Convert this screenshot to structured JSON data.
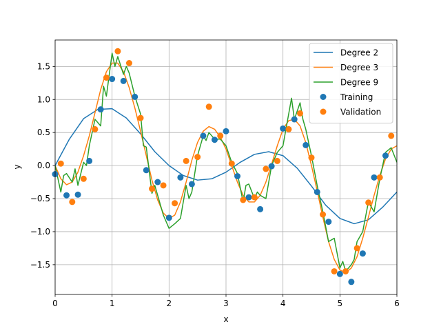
{
  "chart_data": {
    "type": "line",
    "title": "",
    "xlabel": "x",
    "ylabel": "y",
    "xlim": [
      0,
      6
    ],
    "ylim": [
      -1.95,
      1.9
    ],
    "xticks": [
      0,
      1,
      2,
      3,
      4,
      5,
      6
    ],
    "xtick_labels": [
      "0",
      "1",
      "2",
      "3",
      "4",
      "5",
      "6"
    ],
    "yticks": [
      -1.5,
      -1.0,
      -0.5,
      0.0,
      0.5,
      1.0,
      1.5
    ],
    "ytick_labels": [
      "−1.5",
      "−1.0",
      "−0.5",
      "0.0",
      "0.5",
      "1.0",
      "1.5"
    ],
    "grid": true,
    "legend_position": "top-right",
    "series": [
      {
        "name": "Degree 2",
        "kind": "line",
        "color": "#1f77b4",
        "x": [
          0,
          0.25,
          0.5,
          0.75,
          1.0,
          1.25,
          1.5,
          1.75,
          2.0,
          2.25,
          2.5,
          2.75,
          3.0,
          3.25,
          3.5,
          3.75,
          4.0,
          4.25,
          4.5,
          4.75,
          5.0,
          5.25,
          5.5,
          5.75,
          6.0
        ],
        "y": [
          0.0,
          0.4,
          0.71,
          0.85,
          0.86,
          0.72,
          0.48,
          0.21,
          0.0,
          -0.15,
          -0.22,
          -0.2,
          -0.1,
          0.05,
          0.17,
          0.21,
          0.15,
          -0.04,
          -0.31,
          -0.6,
          -0.8,
          -0.88,
          -0.82,
          -0.63,
          -0.4
        ]
      },
      {
        "name": "Degree 3",
        "kind": "line",
        "color": "#ff7f0e",
        "x": [
          0,
          0.1,
          0.2,
          0.3,
          0.4,
          0.5,
          0.6,
          0.7,
          0.8,
          0.9,
          1.0,
          1.1,
          1.2,
          1.3,
          1.4,
          1.5,
          1.6,
          1.7,
          1.8,
          1.9,
          2.0,
          2.1,
          2.2,
          2.3,
          2.4,
          2.5,
          2.6,
          2.7,
          2.8,
          2.9,
          3.0,
          3.1,
          3.2,
          3.3,
          3.4,
          3.5,
          3.6,
          3.7,
          3.8,
          3.9,
          4.0,
          4.1,
          4.2,
          4.3,
          4.4,
          4.5,
          4.6,
          4.7,
          4.8,
          4.9,
          5.0,
          5.1,
          5.2,
          5.3,
          5.4,
          5.5,
          5.6,
          5.7,
          5.8,
          5.9,
          6.0
        ],
        "y": [
          0.0,
          -0.2,
          -0.29,
          -0.25,
          -0.1,
          0.15,
          0.45,
          0.8,
          1.15,
          1.42,
          1.55,
          1.55,
          1.42,
          1.18,
          0.87,
          0.52,
          0.15,
          -0.22,
          -0.52,
          -0.72,
          -0.8,
          -0.75,
          -0.55,
          -0.25,
          0.08,
          0.35,
          0.52,
          0.59,
          0.55,
          0.43,
          0.25,
          0.0,
          -0.25,
          -0.45,
          -0.55,
          -0.55,
          -0.45,
          -0.25,
          0.02,
          0.3,
          0.55,
          0.68,
          0.7,
          0.6,
          0.35,
          0.0,
          -0.38,
          -0.78,
          -1.15,
          -1.42,
          -1.58,
          -1.62,
          -1.55,
          -1.38,
          -1.1,
          -0.78,
          -0.45,
          -0.15,
          0.1,
          0.25,
          0.3
        ]
      },
      {
        "name": "Degree 9",
        "kind": "line",
        "color": "#2ca02c",
        "x": [
          0,
          0.1,
          0.15,
          0.2,
          0.3,
          0.35,
          0.4,
          0.5,
          0.55,
          0.6,
          0.7,
          0.8,
          0.85,
          0.9,
          1.0,
          1.05,
          1.1,
          1.2,
          1.25,
          1.3,
          1.4,
          1.5,
          1.55,
          1.6,
          1.7,
          1.75,
          1.8,
          1.9,
          2.0,
          2.1,
          2.2,
          2.3,
          2.35,
          2.4,
          2.5,
          2.6,
          2.65,
          2.7,
          2.8,
          2.9,
          3.0,
          3.1,
          3.2,
          3.3,
          3.35,
          3.4,
          3.5,
          3.55,
          3.6,
          3.7,
          3.8,
          3.9,
          4.0,
          4.1,
          4.15,
          4.2,
          4.3,
          4.35,
          4.4,
          4.5,
          4.6,
          4.7,
          4.8,
          4.9,
          5.0,
          5.05,
          5.1,
          5.2,
          5.25,
          5.3,
          5.4,
          5.5,
          5.6,
          5.7,
          5.8,
          5.9,
          6.0
        ],
        "y": [
          0.0,
          -0.4,
          -0.15,
          -0.12,
          -0.25,
          -0.05,
          -0.3,
          0.05,
          0.0,
          0.3,
          0.7,
          0.6,
          1.2,
          1.05,
          1.7,
          1.5,
          1.65,
          1.38,
          1.5,
          1.4,
          1.05,
          0.78,
          0.3,
          0.28,
          -0.42,
          -0.3,
          -0.45,
          -0.75,
          -0.95,
          -0.88,
          -0.8,
          -0.3,
          -0.5,
          -0.4,
          0.15,
          0.45,
          0.38,
          0.5,
          0.4,
          0.4,
          0.3,
          0.05,
          -0.12,
          -0.55,
          -0.3,
          -0.28,
          -0.5,
          -0.4,
          -0.45,
          -0.5,
          0.0,
          0.2,
          0.3,
          0.78,
          1.02,
          0.7,
          0.95,
          0.7,
          0.55,
          0.15,
          -0.3,
          -0.7,
          -1.15,
          -1.1,
          -1.55,
          -1.45,
          -1.6,
          -1.5,
          -1.42,
          -1.15,
          -1.0,
          -0.55,
          -0.7,
          -0.2,
          0.2,
          0.27,
          0.05
        ]
      },
      {
        "name": "Training",
        "kind": "scatter",
        "color": "#1f77b4",
        "x": [
          0.0,
          0.2,
          0.4,
          0.6,
          0.8,
          1.0,
          1.2,
          1.4,
          1.6,
          1.8,
          2.0,
          2.2,
          2.4,
          2.6,
          2.8,
          3.0,
          3.2,
          3.4,
          3.6,
          3.8,
          4.0,
          4.2,
          4.4,
          4.6,
          4.8,
          5.0,
          5.2,
          5.4,
          5.6,
          5.8
        ],
        "y": [
          -0.13,
          -0.45,
          -0.44,
          0.07,
          0.85,
          1.31,
          1.28,
          1.04,
          -0.07,
          -0.25,
          -0.79,
          -0.18,
          -0.28,
          0.45,
          0.39,
          0.52,
          -0.16,
          -0.48,
          -0.66,
          -0.01,
          0.56,
          0.7,
          0.31,
          -0.4,
          -0.85,
          -1.64,
          -1.76,
          -1.33,
          -0.18,
          0.15
        ]
      },
      {
        "name": "Validation",
        "kind": "scatter",
        "color": "#ff7f0e",
        "x": [
          0.1,
          0.3,
          0.5,
          0.7,
          0.9,
          1.1,
          1.3,
          1.5,
          1.7,
          1.9,
          2.1,
          2.3,
          2.5,
          2.7,
          2.9,
          3.1,
          3.3,
          3.5,
          3.7,
          3.9,
          4.1,
          4.3,
          4.5,
          4.7,
          4.9,
          5.1,
          5.3,
          5.5,
          5.7,
          5.9
        ],
        "y": [
          0.03,
          -0.55,
          -0.2,
          0.55,
          1.33,
          1.73,
          1.55,
          0.72,
          -0.35,
          -0.3,
          -0.57,
          0.07,
          0.13,
          0.89,
          0.45,
          0.03,
          -0.52,
          -0.48,
          -0.05,
          0.07,
          0.55,
          0.79,
          0.12,
          -0.74,
          -1.6,
          -1.6,
          -1.25,
          -0.56,
          -0.18,
          0.45
        ]
      }
    ]
  }
}
